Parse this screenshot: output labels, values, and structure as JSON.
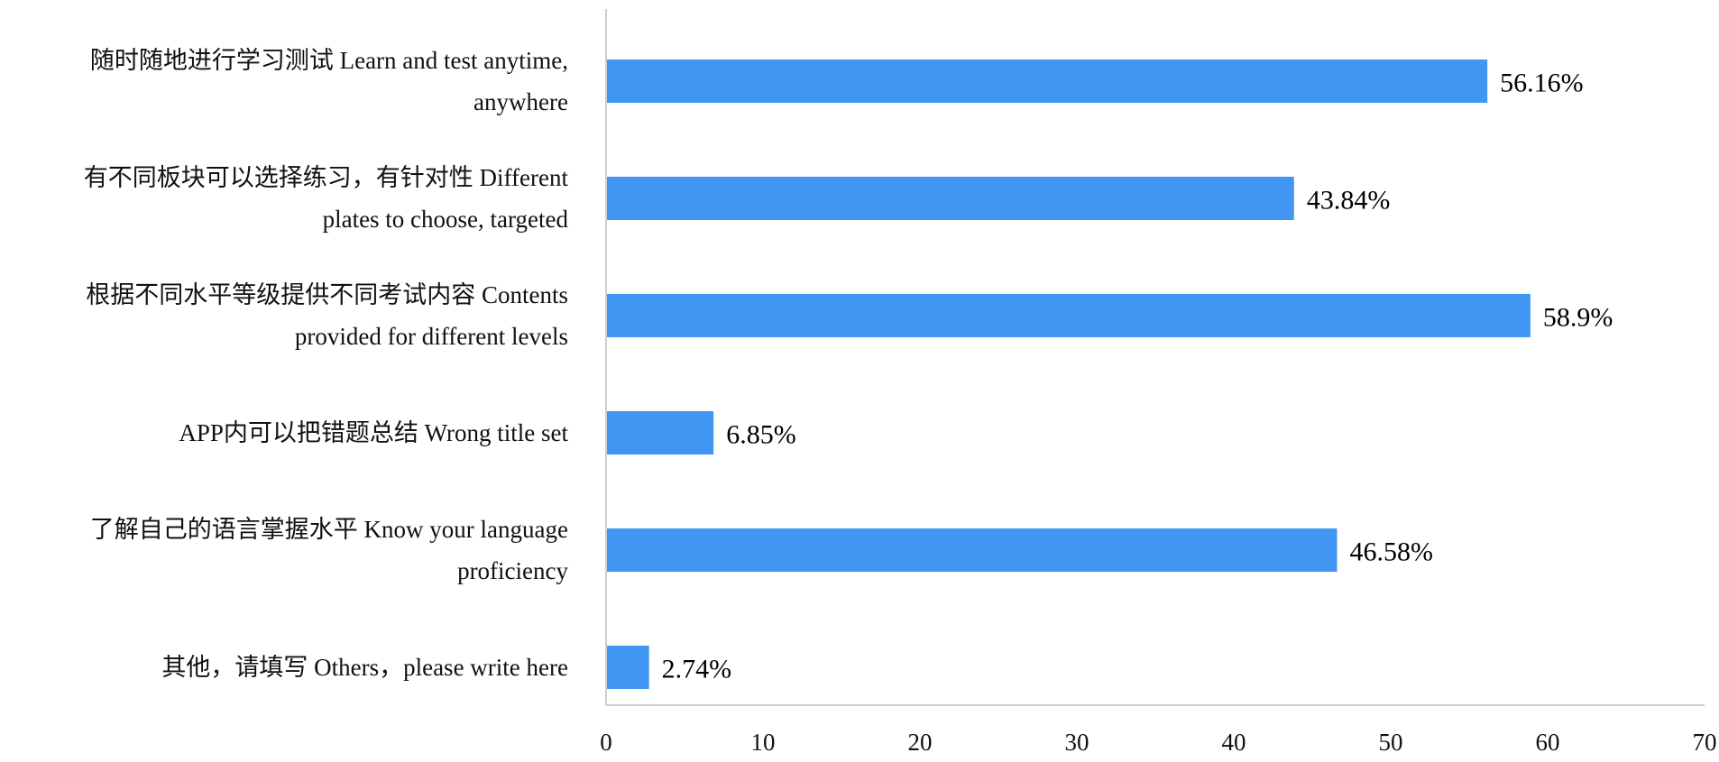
{
  "chart_data": {
    "type": "bar",
    "orientation": "horizontal",
    "categories": [
      [
        "随时随地进行学习测试 Learn and test anytime,",
        "anywhere"
      ],
      [
        "有不同板块可以选择练习，有针对性 Different",
        "plates to choose, targeted"
      ],
      [
        "根据不同水平等级提供不同考试内容 Contents",
        "provided for different levels"
      ],
      [
        "APP内可以把错题总结 Wrong title set"
      ],
      [
        "了解自己的语言掌握水平 Know your language",
        "proficiency"
      ],
      [
        "其他，请填写 Others，please write here"
      ]
    ],
    "values": [
      56.16,
      43.84,
      58.9,
      6.85,
      46.58,
      2.74
    ],
    "value_labels": [
      "56.16%",
      "43.84%",
      "58.9%",
      "6.85%",
      "46.58%",
      "2.74%"
    ],
    "xlim": [
      0,
      70
    ],
    "xticks": [
      "0",
      "10",
      "20",
      "30",
      "40",
      "50",
      "60",
      "70"
    ],
    "title": "",
    "xlabel": "",
    "ylabel": "",
    "grid": false,
    "legend": "none",
    "bar_color": "#4196f4",
    "axis_color": "#c8d0dc"
  }
}
